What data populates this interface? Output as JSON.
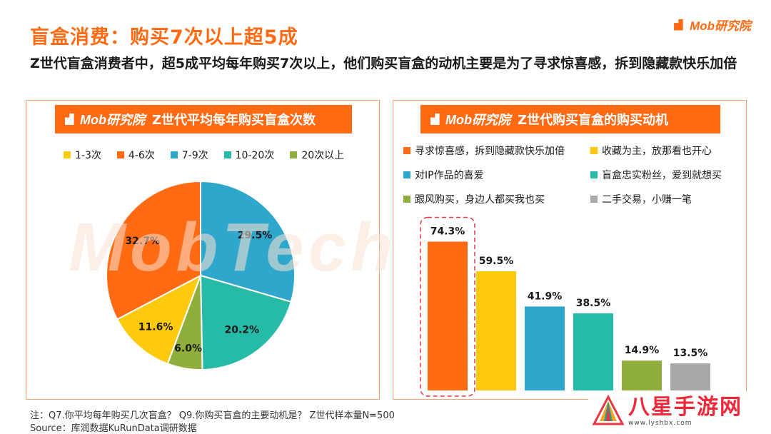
{
  "header": {
    "title": "盲盒消费：购买7次以上超5成",
    "brand": "Mob研究院",
    "subtitle": "Z世代盲盒消费者中，超5成平均每年购买7次以上，他们购买盲盒的动机主要是为了寻求惊喜感，拆到隐藏款快乐加倍"
  },
  "watermark": "MobTech 袤博",
  "chart_data": [
    {
      "type": "pie",
      "title": "Z世代平均每年购买盲盒次数",
      "header_brand": "Mob研究院",
      "categories": [
        "1-3次",
        "4-6次",
        "7-9次",
        "10-20次",
        "20次以上"
      ],
      "values": [
        11.6,
        32.7,
        29.5,
        20.2,
        6.0
      ],
      "value_labels": [
        "11.6%",
        "32.7%",
        "29.5%",
        "20.2%",
        "6.0%"
      ],
      "colors": [
        "#ffc90e",
        "#ff6a13",
        "#2fa7cc",
        "#26bba6",
        "#8fae3c"
      ],
      "slice_order": [
        "7-9次",
        "10-20次",
        "20次以上",
        "1-3次",
        "4-6次"
      ],
      "start_angle_deg": 0,
      "direction": "clockwise",
      "legend_position": "top"
    },
    {
      "type": "bar",
      "title": "Z世代购买盲盒的购买动机",
      "header_brand": "Mob研究院",
      "categories": [
        "寻求惊喜感，拆到隐藏款快乐加倍",
        "收藏为主，放那看也开心",
        "对IP作品的喜爱",
        "盲盒忠实粉丝，爱到就想买",
        "跟风购买，身边人都买我也买",
        "二手交易，小赚一笔"
      ],
      "values": [
        74.3,
        59.5,
        41.9,
        38.5,
        14.9,
        13.5
      ],
      "value_labels": [
        "74.3%",
        "59.5%",
        "41.9%",
        "38.5%",
        "14.9%",
        "13.5%"
      ],
      "colors": [
        "#ff6a13",
        "#ffc90e",
        "#2fa7cc",
        "#26bba6",
        "#8fae3c",
        "#a8a8a8"
      ],
      "ylim": [
        0,
        80
      ],
      "highlight_index": 0,
      "legend_position": "top",
      "grid": false
    }
  ],
  "footer": {
    "note": "注：Q7.你平均每年购买几次盲盒？ Q9.你购买盲盒的主要动机是？ Z世代样本量N=500",
    "source": "Source：库润数据KuRunData调研数据"
  },
  "site_badge": {
    "name": "八星手游网",
    "url": "www.lyshbx.com"
  }
}
